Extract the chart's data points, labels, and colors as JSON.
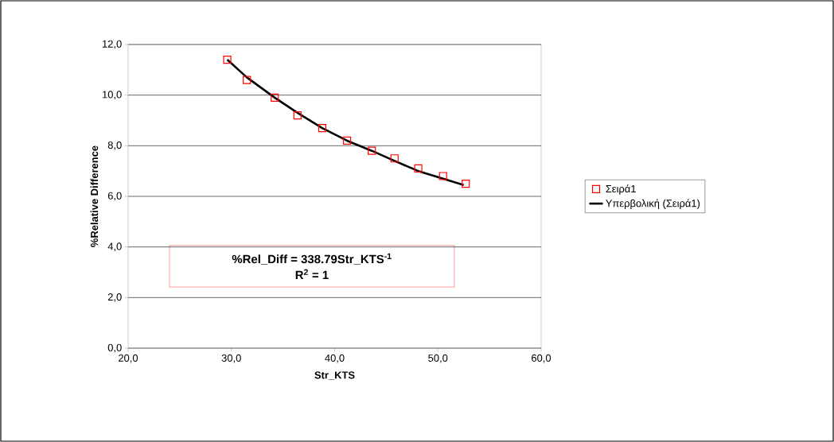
{
  "chart_data": {
    "type": "scatter",
    "xlabel": "Str_KTS",
    "ylabel": "%Relative Difference",
    "xlim": [
      20,
      60
    ],
    "ylim": [
      0,
      12
    ],
    "xticks": [
      {
        "value": 20,
        "label": "20,0"
      },
      {
        "value": 30,
        "label": "30,0"
      },
      {
        "value": 40,
        "label": "40,0"
      },
      {
        "value": 50,
        "label": "50,0"
      },
      {
        "value": 60,
        "label": "60,0"
      }
    ],
    "yticks": [
      {
        "value": 0,
        "label": "0,0"
      },
      {
        "value": 2,
        "label": "2,0"
      },
      {
        "value": 4,
        "label": "4,0"
      },
      {
        "value": 6,
        "label": "6,0"
      },
      {
        "value": 8,
        "label": "8,0"
      },
      {
        "value": 10,
        "label": "10,0"
      },
      {
        "value": 12,
        "label": "12,0"
      }
    ],
    "grid": "y",
    "legend": "right",
    "series": [
      {
        "name": "Σειρά1",
        "marker": "square",
        "color": "#ff0000",
        "x": [
          29.6,
          31.5,
          34.2,
          36.4,
          38.8,
          41.2,
          43.6,
          45.8,
          48.1,
          50.5,
          52.7
        ],
        "values": [
          11.4,
          10.6,
          9.9,
          9.2,
          8.7,
          8.2,
          7.8,
          7.5,
          7.1,
          6.8,
          6.5
        ]
      },
      {
        "name": "Υπερβολική (Σειρά1)",
        "type": "line",
        "marker": "none",
        "line_style": "solid",
        "color": "#000000",
        "x": [
          29.6,
          31.5,
          34.2,
          36.4,
          38.8,
          41.2,
          43.6,
          45.8,
          48.1,
          50.5,
          52.5
        ],
        "values": [
          11.4,
          10.7,
          9.9,
          9.3,
          8.7,
          8.2,
          7.8,
          7.4,
          7.0,
          6.7,
          6.45
        ]
      }
    ],
    "annotations": [
      "%Rel_Diff = 338.79Str_KTS$^{-1}$",
      "R$^{2}$ = 1"
    ]
  }
}
